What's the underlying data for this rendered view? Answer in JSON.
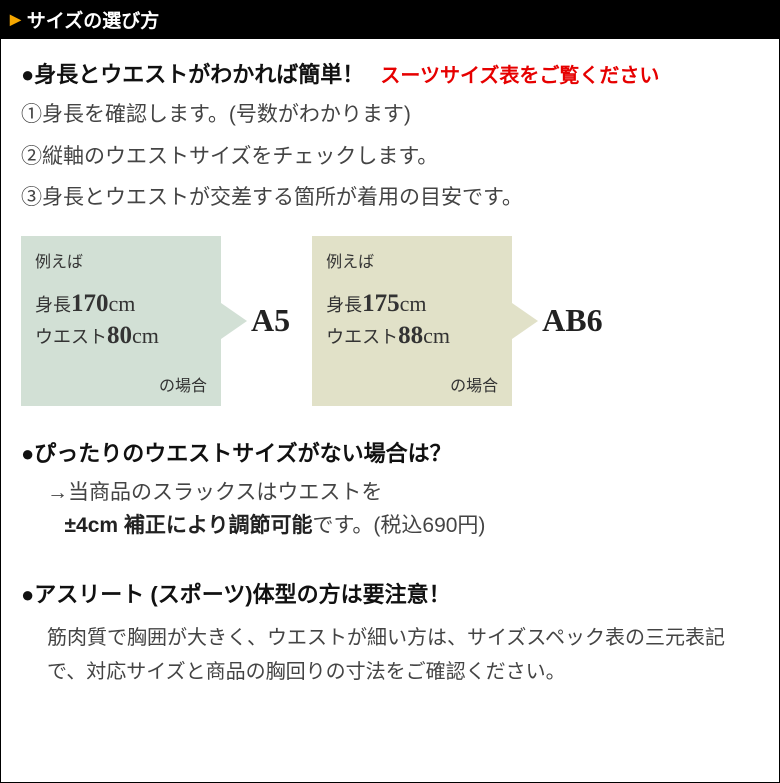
{
  "header": {
    "triangle": "▶",
    "title": "サイズの選び方"
  },
  "intro": {
    "heading": "●身長とウエストがわかれば簡単！",
    "note": "スーツサイズ表をご覧ください"
  },
  "steps": {
    "s1": "①身長を確認します。(号数がわかります)",
    "s2": "②縦軸のウエストサイズをチェックします。",
    "s3": "③身長とウエストが交差する箇所が着用の目安です。"
  },
  "examples": {
    "ex1": {
      "label": "例えば",
      "heightKey": "身長",
      "heightVal": "170",
      "heightUnit": "cm",
      "waistKey": "ウエスト",
      "waistVal": "80",
      "waistUnit": "cm",
      "case": "の場合",
      "result": "A5"
    },
    "ex2": {
      "label": "例えば",
      "heightKey": "身長",
      "heightVal": "175",
      "heightUnit": "cm",
      "waistKey": "ウエスト",
      "waistVal": "88",
      "waistUnit": "cm",
      "case": "の場合",
      "result": "AB6"
    }
  },
  "waistQ": {
    "heading": "●ぴったりのウエストサイズがない場合は？",
    "line1a": "→当商品のスラックスはウエストを",
    "em": "±4cm 補正により調節可能",
    "line1b": "です。(税込690円)"
  },
  "athlete": {
    "heading": "●アスリート (スポーツ)体型の方は要注意！",
    "body": "筋肉質で胸囲が大きく、ウエストが細い方は、サイズスペック表の三元表記で、対応サイズと商品の胸回りの寸法をご確認ください。"
  }
}
